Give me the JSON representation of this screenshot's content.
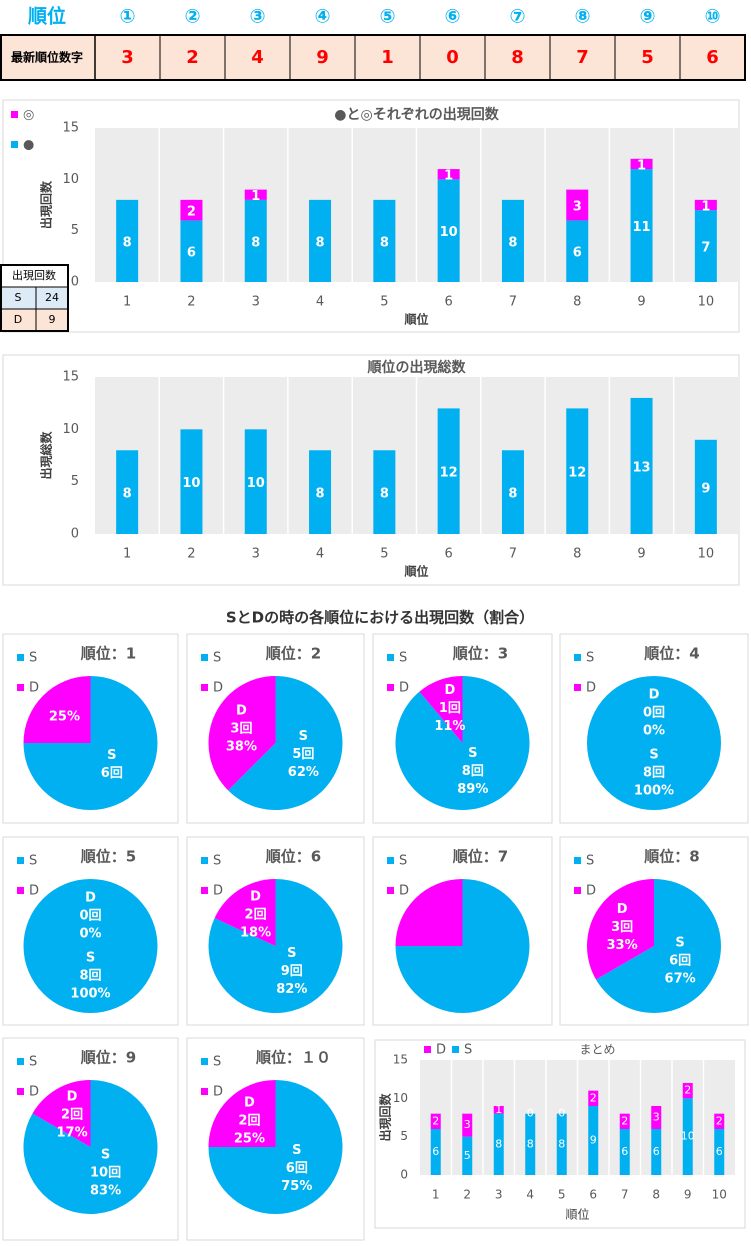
{
  "table": {
    "header": [
      "順位",
      "①",
      "②",
      "③",
      "④",
      "⑤",
      "⑥",
      "⑦",
      "⑧",
      "⑨",
      "⑩"
    ],
    "row_label": "最新順位数字",
    "row": [
      3,
      2,
      4,
      9,
      1,
      0,
      8,
      7,
      5,
      6
    ]
  },
  "count_table": {
    "title": "出現回数",
    "rows": [
      [
        "S",
        24
      ],
      [
        "D",
        9
      ]
    ]
  },
  "section_title": "SとDの時の各順位における出現回数（割合）",
  "chart_data": [
    {
      "type": "bar",
      "title": "●と◎それぞれの出現回数",
      "ylabel": "出現回数",
      "xlabel": "順位",
      "categories": [
        1,
        2,
        3,
        4,
        5,
        6,
        7,
        8,
        9,
        10
      ],
      "series": [
        {
          "name": "●",
          "color": "#00b0f0",
          "values": [
            8,
            6,
            8,
            8,
            8,
            10,
            8,
            6,
            11,
            7
          ]
        },
        {
          "name": "◎",
          "color": "#ff00ff",
          "values": [
            null,
            2,
            1,
            null,
            null,
            1,
            null,
            3,
            1,
            1
          ]
        }
      ],
      "ylim": [
        0,
        15
      ],
      "yticks": [
        0,
        5,
        10,
        15
      ],
      "legend": "top-left"
    },
    {
      "type": "bar",
      "title": "順位の出現総数",
      "ylabel": "出現総数",
      "xlabel": "順位",
      "categories": [
        1,
        2,
        3,
        4,
        5,
        6,
        7,
        8,
        9,
        10
      ],
      "values": [
        8,
        10,
        10,
        8,
        8,
        12,
        8,
        12,
        13,
        9
      ],
      "color": "#00b0f0",
      "ylim": [
        0,
        15
      ],
      "yticks": [
        0,
        5,
        10,
        15
      ]
    },
    {
      "type": "pie",
      "title": "順位：1",
      "categories": [
        "S",
        "D"
      ],
      "colors": [
        "#00b0f0",
        "#ff00ff"
      ],
      "values": [
        6,
        2
      ],
      "value_labels": [
        "6回",
        null
      ],
      "percents": [
        75,
        25
      ],
      "percent_labels": [
        null,
        "25%"
      ]
    },
    {
      "type": "pie",
      "title": "順位：2",
      "categories": [
        "S",
        "D"
      ],
      "colors": [
        "#00b0f0",
        "#ff00ff"
      ],
      "values": [
        5,
        3
      ],
      "value_labels": [
        "5回",
        "3回"
      ],
      "percents": [
        62,
        38
      ],
      "percent_labels": [
        "62%",
        "38%"
      ]
    },
    {
      "type": "pie",
      "title": "順位：3",
      "categories": [
        "S",
        "D"
      ],
      "colors": [
        "#00b0f0",
        "#ff00ff"
      ],
      "values": [
        8,
        1
      ],
      "value_labels": [
        "8回",
        "1回"
      ],
      "percents": [
        89,
        11
      ],
      "percent_labels": [
        "89%",
        "11%"
      ]
    },
    {
      "type": "pie",
      "title": "順位：4",
      "categories": [
        "S",
        "D"
      ],
      "colors": [
        "#00b0f0",
        "#ff00ff"
      ],
      "values": [
        8,
        0
      ],
      "value_labels": [
        "8回",
        "0回"
      ],
      "percents": [
        100,
        0
      ],
      "percent_labels": [
        "100%",
        "0%"
      ]
    },
    {
      "type": "pie",
      "title": "順位：5",
      "categories": [
        "S",
        "D"
      ],
      "colors": [
        "#00b0f0",
        "#ff00ff"
      ],
      "values": [
        8,
        0
      ],
      "value_labels": [
        "8回",
        "0回"
      ],
      "percents": [
        100,
        0
      ],
      "percent_labels": [
        "100%",
        "0%"
      ]
    },
    {
      "type": "pie",
      "title": "順位：6",
      "categories": [
        "S",
        "D"
      ],
      "colors": [
        "#00b0f0",
        "#ff00ff"
      ],
      "values": [
        9,
        2
      ],
      "value_labels": [
        "9回",
        "2回"
      ],
      "percents": [
        82,
        18
      ],
      "percent_labels": [
        "82%",
        "18%"
      ]
    },
    {
      "type": "pie",
      "title": "順位：7",
      "categories": [
        "S",
        "D"
      ],
      "colors": [
        "#00b0f0",
        "#ff00ff"
      ],
      "values": [
        6,
        2
      ],
      "percents": [
        75,
        25
      ]
    },
    {
      "type": "pie",
      "title": "順位：8",
      "categories": [
        "S",
        "D"
      ],
      "colors": [
        "#00b0f0",
        "#ff00ff"
      ],
      "values": [
        6,
        3
      ],
      "value_labels": [
        "6回",
        "3回"
      ],
      "percents": [
        67,
        33
      ],
      "percent_labels": [
        "67%",
        "33%"
      ]
    },
    {
      "type": "pie",
      "title": "順位：9",
      "categories": [
        "S",
        "D"
      ],
      "colors": [
        "#00b0f0",
        "#ff00ff"
      ],
      "values": [
        10,
        2
      ],
      "value_labels": [
        "10回",
        "2回"
      ],
      "percents": [
        83,
        17
      ],
      "percent_labels": [
        "83%",
        "17%"
      ]
    },
    {
      "type": "pie",
      "title": "順位：１０",
      "categories": [
        "S",
        "D"
      ],
      "colors": [
        "#00b0f0",
        "#ff00ff"
      ],
      "values": [
        6,
        2
      ],
      "value_labels": [
        "6回",
        "2回"
      ],
      "percents": [
        75,
        25
      ],
      "percent_labels": [
        "75%",
        "25%"
      ]
    },
    {
      "type": "bar",
      "title": "まとめ",
      "ylabel": "出現回数",
      "xlabel": "順位",
      "categories": [
        1,
        2,
        3,
        4,
        5,
        6,
        7,
        8,
        9,
        10
      ],
      "series": [
        {
          "name": "S",
          "color": "#00b0f0",
          "values": [
            6,
            5,
            8,
            8,
            8,
            9,
            6,
            6,
            10,
            6
          ]
        },
        {
          "name": "D",
          "color": "#ff00ff",
          "values": [
            2,
            3,
            1,
            0,
            0,
            2,
            2,
            3,
            2,
            2
          ]
        }
      ],
      "ylim": [
        0,
        15
      ],
      "yticks": [
        0,
        5,
        10,
        15
      ],
      "legend": "top"
    }
  ]
}
